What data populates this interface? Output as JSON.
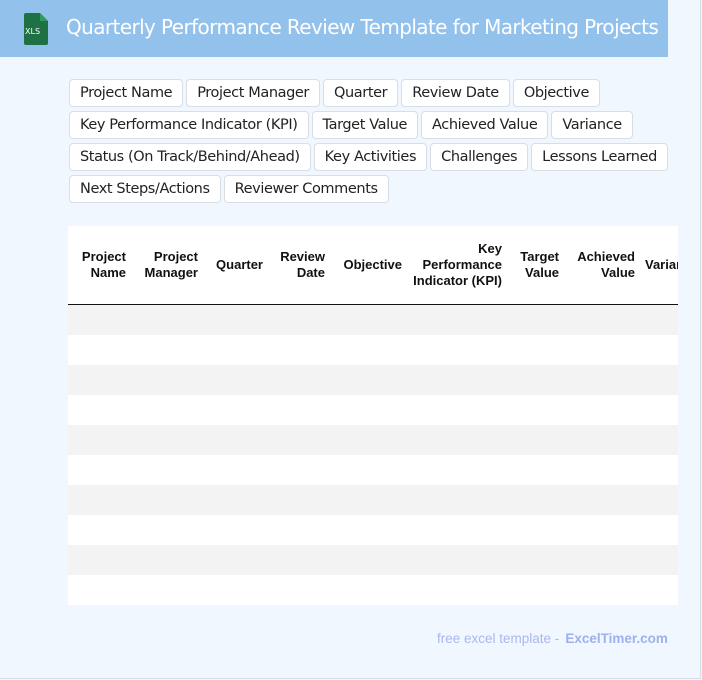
{
  "header": {
    "title": "Quarterly Performance Review Template for Marketing Projects",
    "logo_text": "XLS",
    "logo_color": "#1e7145"
  },
  "tags": [
    "Project Name",
    "Project Manager",
    "Quarter",
    "Review Date",
    "Objective",
    "Key Performance Indicator (KPI)",
    "Target Value",
    "Achieved Value",
    "Variance",
    "Status (On Track/Behind/Ahead)",
    "Key Activities",
    "Challenges",
    "Lessons Learned",
    "Next Steps/Actions",
    "Reviewer Comments"
  ],
  "table": {
    "columns": [
      "Project Name",
      "Project Manager",
      "Quarter",
      "Review Date",
      "Objective",
      "Key Performance Indicator (KPI)",
      "Target Value",
      "Achieved Value",
      "Variance"
    ],
    "row_count": 10
  },
  "footer": {
    "text": "free excel template -",
    "brand": "ExcelTimer.com"
  }
}
